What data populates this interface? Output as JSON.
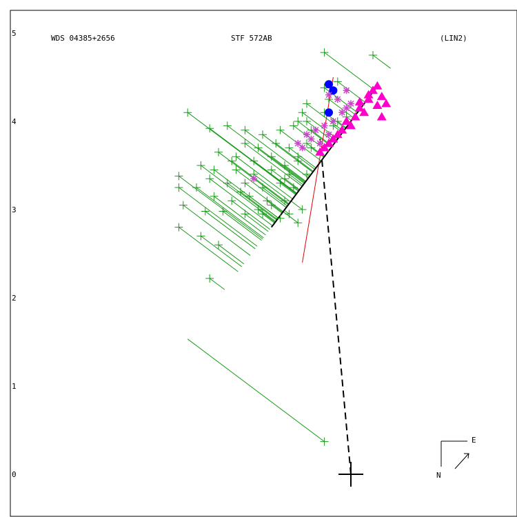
{
  "header": {
    "left": "WDS 04385+2656",
    "center": "STF 572AB",
    "right": "(LIN2)"
  },
  "compass": {
    "east_label": "E",
    "north_label": "N"
  },
  "colors": {
    "micrometer": "#1a9a1a",
    "speckle": "#ff00cc",
    "hipparcos": "#0000ff",
    "orbit_line": "#000000",
    "fit_line": "#e00000",
    "connector": "#1a9a1a"
  },
  "chart_data": {
    "type": "scatter",
    "title": "STF 572AB",
    "ylabel": "",
    "xlabel": "",
    "ylim": [
      -0.45,
      5.25
    ],
    "yticks": [
      "0",
      "1",
      "2",
      "3",
      "4",
      "5"
    ],
    "y_tick_values": [
      0,
      1,
      2,
      3,
      4,
      5
    ],
    "primary_star": [
      0,
      0
    ],
    "linear_fit": [
      [
        -0.9,
        2.8
      ],
      [
        0.3,
        4.4
      ]
    ],
    "fit_ext": [
      [
        -0.55,
        2.4
      ],
      [
        -0.2,
        4.5
      ]
    ],
    "closest_approach_dashed": [
      [
        0,
        0
      ],
      [
        -0.35,
        3.8
      ]
    ],
    "series": [
      {
        "kind": "plus",
        "points": [
          [
            -0.3,
            4.78
          ],
          [
            0.25,
            4.75
          ],
          [
            -0.15,
            4.45
          ],
          [
            -0.3,
            4.38
          ],
          [
            -0.25,
            4.25
          ],
          [
            -0.05,
            4.15
          ],
          [
            -0.05,
            4.05
          ],
          [
            -0.3,
            4.1
          ],
          [
            -0.5,
            4.2
          ],
          [
            -0.55,
            4.1
          ],
          [
            -0.5,
            4.0
          ],
          [
            -0.6,
            4.0
          ],
          [
            -1.85,
            4.1
          ],
          [
            -1.6,
            3.92
          ],
          [
            -1.4,
            3.95
          ],
          [
            -1.2,
            3.9
          ],
          [
            -1.0,
            3.85
          ],
          [
            -0.8,
            3.9
          ],
          [
            -0.65,
            3.95
          ],
          [
            -0.45,
            3.7
          ],
          [
            -0.7,
            3.7
          ],
          [
            -0.85,
            3.75
          ],
          [
            -1.05,
            3.7
          ],
          [
            -1.2,
            3.75
          ],
          [
            -1.3,
            3.6
          ],
          [
            -1.5,
            3.65
          ],
          [
            -1.35,
            3.55
          ],
          [
            -1.1,
            3.55
          ],
          [
            -0.9,
            3.6
          ],
          [
            -0.75,
            3.5
          ],
          [
            -0.6,
            3.55
          ],
          [
            -0.5,
            3.4
          ],
          [
            -0.7,
            3.4
          ],
          [
            -0.9,
            3.45
          ],
          [
            -1.1,
            3.4
          ],
          [
            -1.3,
            3.45
          ],
          [
            -1.55,
            3.45
          ],
          [
            -1.7,
            3.5
          ],
          [
            -1.6,
            3.35
          ],
          [
            -1.4,
            3.3
          ],
          [
            -1.2,
            3.3
          ],
          [
            -1.0,
            3.25
          ],
          [
            -0.8,
            3.3
          ],
          [
            -0.65,
            3.25
          ],
          [
            -0.75,
            3.1
          ],
          [
            -0.95,
            3.1
          ],
          [
            -1.15,
            3.15
          ],
          [
            -1.35,
            3.1
          ],
          [
            -1.55,
            3.15
          ],
          [
            -1.75,
            3.25
          ],
          [
            -1.95,
            3.38
          ],
          [
            -1.95,
            3.25
          ],
          [
            -1.9,
            3.05
          ],
          [
            -1.65,
            2.98
          ],
          [
            -1.45,
            2.98
          ],
          [
            -1.2,
            2.95
          ],
          [
            -1.0,
            2.95
          ],
          [
            -0.8,
            2.9
          ],
          [
            -0.6,
            2.85
          ],
          [
            -1.95,
            2.8
          ],
          [
            -1.7,
            2.7
          ],
          [
            -1.5,
            2.6
          ],
          [
            -1.6,
            2.22
          ],
          [
            -0.7,
            2.95
          ],
          [
            -0.55,
            3.0
          ],
          [
            -1.25,
            3.2
          ],
          [
            -1.05,
            3.0
          ],
          [
            -0.9,
            3.05
          ],
          [
            -0.75,
            3.35
          ],
          [
            -0.6,
            3.6
          ],
          [
            -0.5,
            3.75
          ],
          [
            -0.45,
            3.9
          ],
          [
            -0.2,
            3.95
          ],
          [
            -0.15,
            4.0
          ],
          [
            -0.3,
            0.37
          ]
        ]
      },
      {
        "kind": "circle",
        "points": [
          [
            -0.25,
            4.42
          ],
          [
            -0.2,
            4.35
          ],
          [
            -0.25,
            4.1
          ]
        ]
      },
      {
        "kind": "triangle",
        "points": [
          [
            0.3,
            4.4
          ],
          [
            0.25,
            4.35
          ],
          [
            0.35,
            4.28
          ],
          [
            0.2,
            4.25
          ],
          [
            0.3,
            4.18
          ],
          [
            0.1,
            4.15
          ],
          [
            0.15,
            4.1
          ],
          [
            0.35,
            4.05
          ],
          [
            0.05,
            4.05
          ],
          [
            -0.05,
            4.0
          ],
          [
            0.0,
            3.95
          ],
          [
            -0.1,
            3.9
          ],
          [
            -0.15,
            3.85
          ],
          [
            -0.2,
            3.8
          ],
          [
            -0.25,
            3.75
          ],
          [
            -0.3,
            3.7
          ],
          [
            -0.35,
            3.65
          ],
          [
            0.2,
            4.3
          ],
          [
            0.1,
            4.22
          ],
          [
            0.4,
            4.2
          ]
        ]
      },
      {
        "kind": "star",
        "points": [
          [
            -0.35,
            3.75
          ],
          [
            -0.45,
            3.8
          ],
          [
            -0.4,
            3.9
          ],
          [
            -0.5,
            3.85
          ],
          [
            -0.3,
            3.95
          ],
          [
            -0.25,
            3.85
          ],
          [
            -0.2,
            4.0
          ],
          [
            -0.1,
            4.1
          ],
          [
            -0.05,
            4.15
          ],
          [
            0.0,
            4.2
          ],
          [
            -0.55,
            3.7
          ],
          [
            -0.6,
            3.75
          ],
          [
            -0.15,
            4.25
          ],
          [
            -0.25,
            4.3
          ],
          [
            -0.05,
            4.35
          ],
          [
            -1.1,
            3.35
          ]
        ]
      }
    ]
  }
}
